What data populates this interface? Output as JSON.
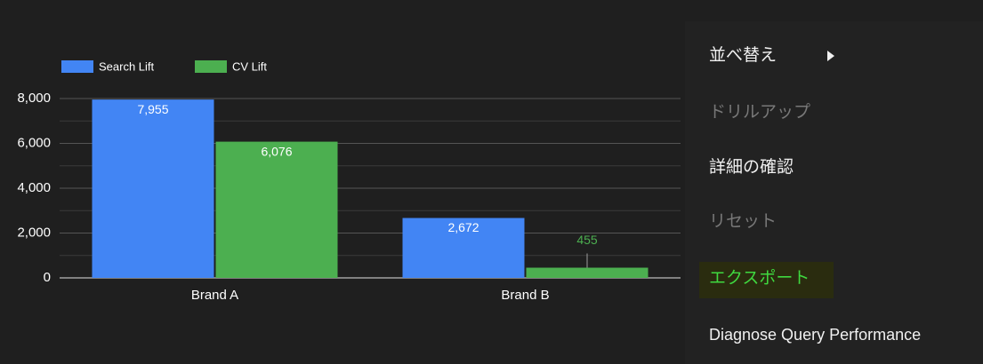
{
  "chart_data": {
    "type": "bar",
    "categories": [
      "Brand A",
      "Brand B"
    ],
    "series": [
      {
        "name": "Search Lift",
        "color": "#4285f4",
        "values": [
          7955,
          2672
        ],
        "value_labels": [
          "7,955",
          "2,672"
        ]
      },
      {
        "name": "CV Lift",
        "color": "#4caf50",
        "values": [
          6076,
          455
        ],
        "value_labels": [
          "6,076",
          "455"
        ]
      }
    ],
    "ylim": [
      0,
      8000
    ],
    "yticks": [
      0,
      {
        "value": 2000,
        "label": "2,000"
      },
      {
        "value": 4000,
        "label": "4,000"
      },
      {
        "value": 6000,
        "label": "6,000"
      },
      {
        "value": 8000,
        "label": "8,000"
      }
    ],
    "minor_yticks": [
      1000,
      3000,
      5000,
      7000
    ],
    "grid": true,
    "legend": "top-left"
  },
  "menu": {
    "items": [
      {
        "label": "並べ替え",
        "enabled": true,
        "submenu": true
      },
      {
        "label": "ドリルアップ",
        "enabled": false
      },
      {
        "label": "詳細の確認",
        "enabled": true
      },
      {
        "label": "リセット",
        "enabled": false
      },
      {
        "label": "エクスポート",
        "enabled": true,
        "highlighted": true
      },
      {
        "label": "Diagnose Query Performance",
        "enabled": true
      }
    ]
  }
}
